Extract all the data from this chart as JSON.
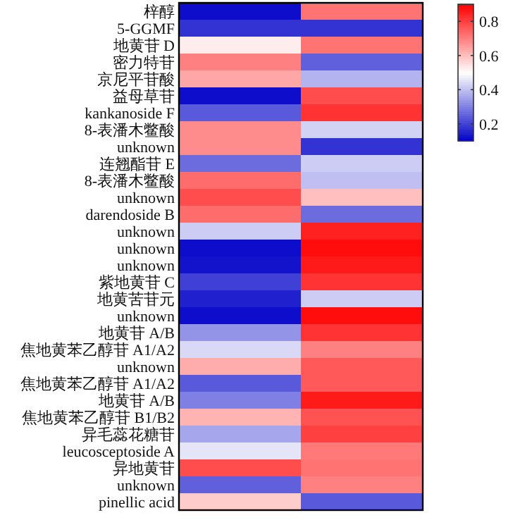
{
  "chart_data": {
    "type": "heatmap",
    "categories": [
      null,
      null
    ],
    "y_categories": [
      "梓醇",
      "5-GGMF",
      "地黄苷 D",
      "密力特苷",
      "京尼平苷酸",
      "益母草苷",
      "kankanoside F",
      "8-表潘木鳖酸",
      "unknown",
      "连翘酯苷 E",
      "8-表潘木鳖酸",
      "unknown",
      "darendoside B",
      "unknown",
      "unknown",
      "unknown",
      "紫地黄苷 C",
      "地黄苦苷元",
      "unknown",
      "地黄苷 A/B",
      "焦地黄苯乙醇苷 A1/A2",
      "unknown",
      "焦地黄苯乙醇苷 A1/A2",
      "地黄苷 A/B",
      "焦地黄苯乙醇苷 B1/B2",
      "异毛蕊花糖苷",
      "leucosceptoside A",
      "异地黄苷",
      "unknown",
      "pinellic acid"
    ],
    "cells": [
      [
        0.12,
        0.72
      ],
      [
        0.18,
        0.18
      ],
      [
        0.53,
        0.72
      ],
      [
        0.7,
        0.25
      ],
      [
        0.64,
        0.38
      ],
      [
        0.12,
        0.78
      ],
      [
        0.24,
        0.82
      ],
      [
        0.68,
        0.43
      ],
      [
        0.68,
        0.18
      ],
      [
        0.27,
        0.42
      ],
      [
        0.73,
        0.4
      ],
      [
        0.78,
        0.6
      ],
      [
        0.73,
        0.27
      ],
      [
        0.42,
        0.85
      ],
      [
        0.12,
        0.88
      ],
      [
        0.13,
        0.86
      ],
      [
        0.2,
        0.82
      ],
      [
        0.15,
        0.42
      ],
      [
        0.12,
        0.88
      ],
      [
        0.33,
        0.82
      ],
      [
        0.44,
        0.7
      ],
      [
        0.63,
        0.76
      ],
      [
        0.24,
        0.76
      ],
      [
        0.3,
        0.86
      ],
      [
        0.62,
        0.77
      ],
      [
        0.36,
        0.8
      ],
      [
        0.46,
        0.71
      ],
      [
        0.78,
        0.72
      ],
      [
        0.25,
        0.7
      ],
      [
        0.58,
        0.24
      ]
    ],
    "clim": [
      0.1,
      0.9
    ],
    "cticks": [
      0.2,
      0.4,
      0.6,
      0.8
    ]
  }
}
